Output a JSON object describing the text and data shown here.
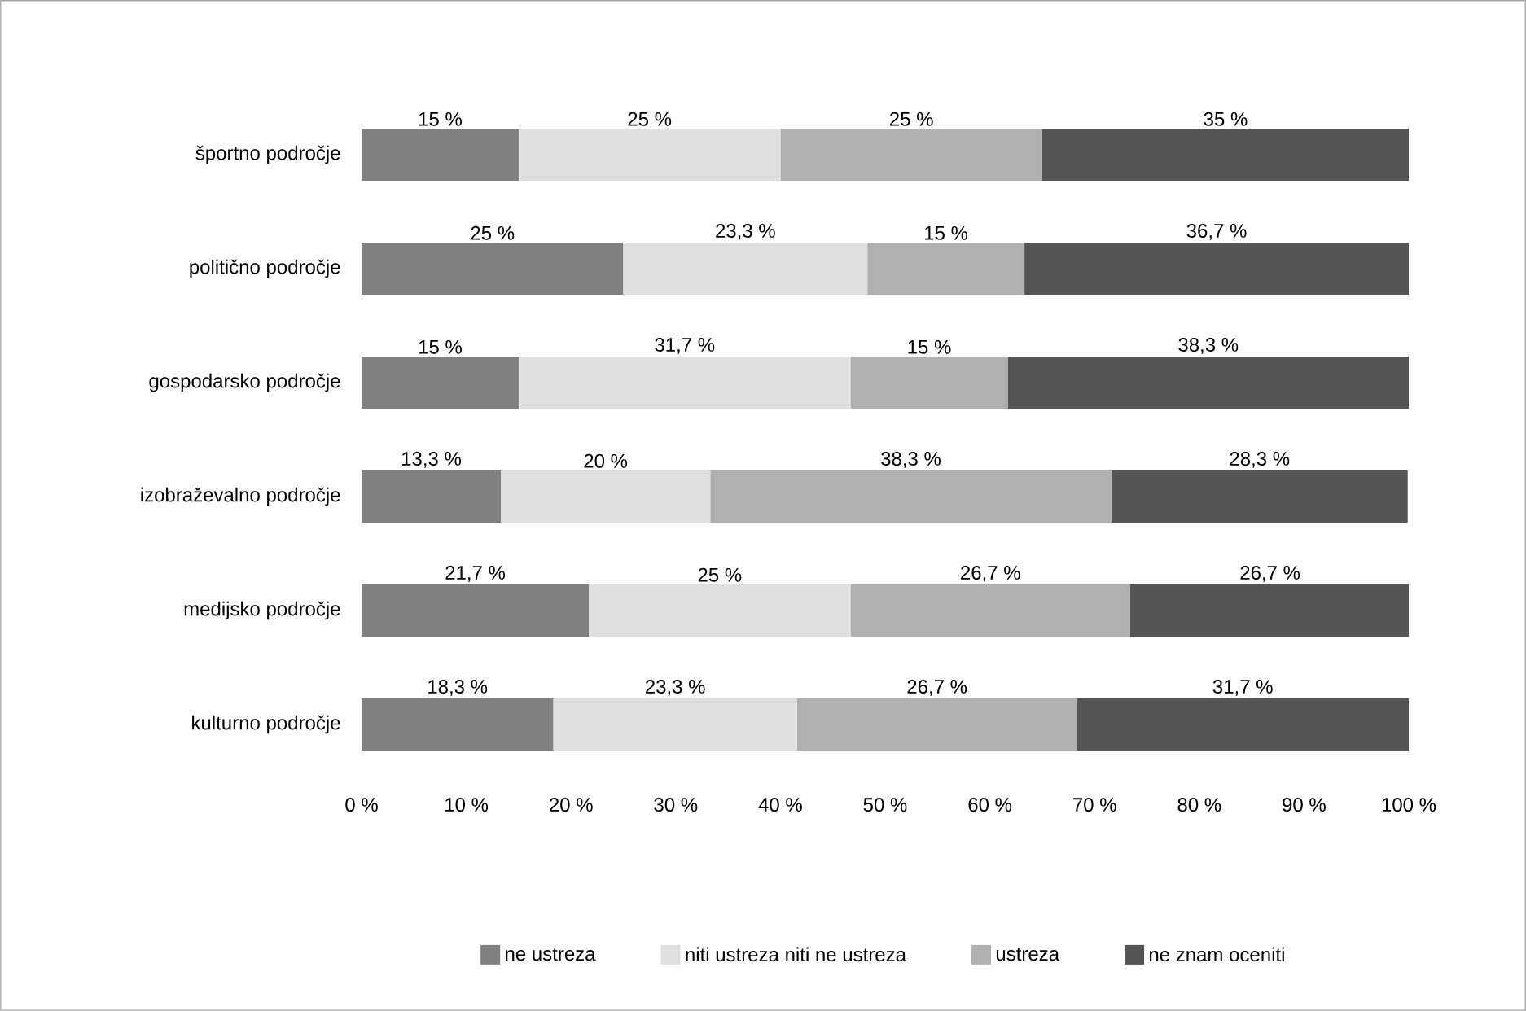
{
  "chart_data": {
    "type": "bar",
    "orientation": "horizontal",
    "stacked": true,
    "categories": [
      "športno področje",
      "politično področje",
      "gospodarsko področje",
      "izobraževalno področje",
      "medijsko področje",
      "kulturno področje"
    ],
    "series": [
      {
        "name": "ne ustreza",
        "color": "#808080",
        "values": [
          15,
          25,
          15,
          13.3,
          21.7,
          18.3
        ],
        "value_labels": [
          "15 %",
          "25 %",
          "15 %",
          "13,3 %",
          "21,7 %",
          "18,3 %"
        ]
      },
      {
        "name": "niti ustreza niti ne ustreza",
        "color": "#e0e0e0",
        "values": [
          25,
          23.3,
          31.7,
          20,
          25,
          23.3
        ],
        "value_labels": [
          "25 %",
          "23,3 %",
          "31,7 %",
          "20 %",
          "25 %",
          "23,3 %"
        ]
      },
      {
        "name": "ustreza",
        "color": "#b0b0b0",
        "values": [
          25,
          15,
          15,
          38.3,
          26.7,
          26.7
        ],
        "value_labels": [
          "25 %",
          "15 %",
          "15 %",
          "38,3 %",
          "26,7 %",
          "26,7 %"
        ]
      },
      {
        "name": "ne znam oceniti",
        "color": "#555555",
        "values": [
          35,
          36.7,
          38.3,
          28.3,
          26.7,
          31.7
        ],
        "value_labels": [
          "35 %",
          "36,7 %",
          "38,3 %",
          "28,3 %",
          "26,7 %",
          "31,7 %"
        ]
      }
    ],
    "xlim": [
      0,
      100
    ],
    "xticks": [
      {
        "value": 0,
        "label": "0 %"
      },
      {
        "value": 10,
        "label": "10 %"
      },
      {
        "value": 20,
        "label": "20 %"
      },
      {
        "value": 30,
        "label": "30 %"
      },
      {
        "value": 40,
        "label": "40 %"
      },
      {
        "value": 50,
        "label": "50 %"
      },
      {
        "value": 60,
        "label": "60 %"
      },
      {
        "value": 70,
        "label": "70 %"
      },
      {
        "value": 80,
        "label": "80 %"
      },
      {
        "value": 90,
        "label": "90 %"
      },
      {
        "value": 100,
        "label": "100 %"
      }
    ],
    "legend": "bottom"
  }
}
